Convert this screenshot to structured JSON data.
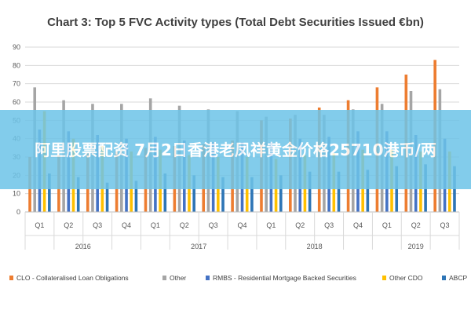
{
  "chart_data": {
    "type": "bar",
    "title": "Chart 3: Top 5 FVC Activity types (Total Debt Securities Issued €bn)",
    "xlabel": "",
    "ylabel": "",
    "ylim": [
      0,
      90
    ],
    "yticks": [
      0,
      10,
      20,
      30,
      40,
      50,
      60,
      70,
      80,
      90
    ],
    "grid": true,
    "legend_position": "bottom",
    "categories": [
      "Q1",
      "Q2",
      "Q3",
      "Q4",
      "Q1",
      "Q2",
      "Q3",
      "Q4",
      "Q1",
      "Q2",
      "Q3",
      "Q4",
      "Q1",
      "Q2",
      "Q3"
    ],
    "years": [
      {
        "label": "2016",
        "span": [
          0,
          3
        ]
      },
      {
        "label": "2017",
        "span": [
          4,
          7
        ]
      },
      {
        "label": "2018",
        "span": [
          8,
          11
        ]
      },
      {
        "label": "2019",
        "span": [
          12,
          14
        ]
      }
    ],
    "series": [
      {
        "name": "CLO - Collateralised Loan Obligations",
        "color": "#ed7d31",
        "values": [
          30,
          31,
          32,
          33,
          35,
          36,
          37,
          39,
          50,
          51,
          57,
          61,
          68,
          75,
          83
        ]
      },
      {
        "name": "Other",
        "color": "#a5a5a5",
        "values": [
          68,
          61,
          59,
          59,
          62,
          58,
          56,
          55,
          52,
          53,
          53,
          56,
          59,
          66,
          67
        ]
      },
      {
        "name": "RMBS - Residential Mortgage Backed Securities",
        "color": "#4472c4",
        "values": [
          45,
          44,
          42,
          40,
          41,
          39,
          38,
          38,
          38,
          40,
          41,
          44,
          44,
          42,
          40
        ]
      },
      {
        "name": "Other CDO",
        "color": "#ffc000",
        "values": [
          55,
          40,
          36,
          33,
          34,
          31,
          30,
          30,
          29,
          31,
          32,
          34,
          34,
          33,
          33
        ]
      },
      {
        "name": "ABCP",
        "color": "#2e75b6",
        "values": [
          21,
          19,
          16,
          17,
          21,
          20,
          19,
          19,
          20,
          22,
          22,
          23,
          25,
          26,
          25
        ]
      }
    ]
  },
  "overlay": {
    "banner_text": "阿里股票配资 7月2日香港老凤祥黄金价格25710港币/两",
    "banner_color": "#6ec4e8"
  }
}
